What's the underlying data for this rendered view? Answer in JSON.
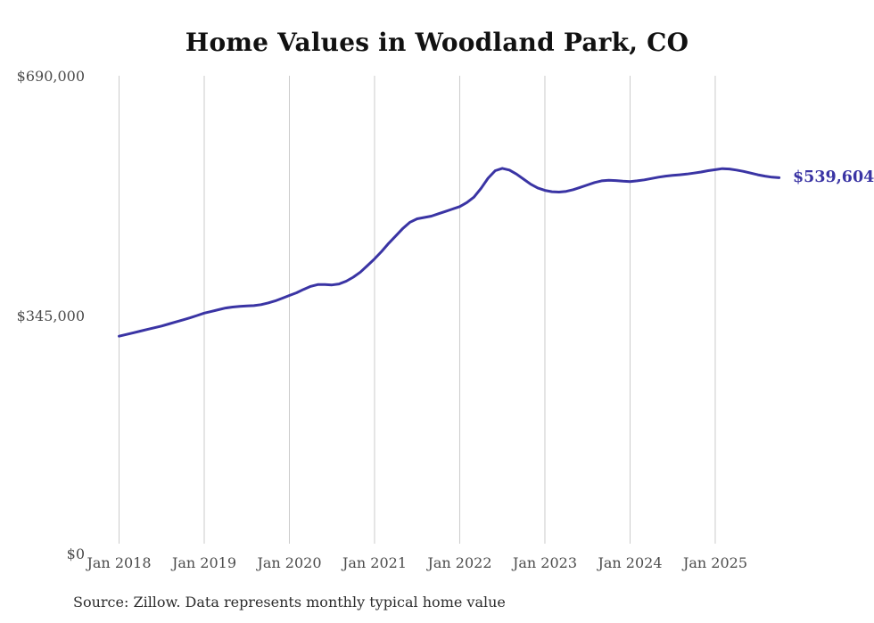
{
  "chart": {
    "title": "Home Values in Woodland Park, CO",
    "source": "Source: Zillow. Data represents monthly typical home value",
    "line_color": "#3A34A4",
    "gridline_color": "#cbcbcb",
    "axis_label_color": "#4c4c4c"
  },
  "chart_data": {
    "type": "line",
    "title": "Home Values in Woodland Park, CO",
    "xlabel": "",
    "ylabel": "",
    "ylim": [
      0,
      690000
    ],
    "y_ticks": [
      "$0",
      "$345,000",
      "$690,000"
    ],
    "x_labels": [
      "Jan 2018",
      "Jan 2019",
      "Jan 2020",
      "Jan 2021",
      "Jan 2022",
      "Jan 2023",
      "Jan 2024",
      "Jan 2025"
    ],
    "x_start": "Jan 2018",
    "x_end": "Oct 2025",
    "points_per_year": 12,
    "grid": "vertical-only",
    "legend": "none",
    "latest_value": 539604,
    "latest_value_label": "$539,604",
    "series": [
      {
        "name": "Typical home value",
        "values": [
          306000,
          308500,
          311000,
          313500,
          316000,
          318500,
          321000,
          324000,
          327000,
          330000,
          333000,
          336500,
          340000,
          342500,
          345000,
          347500,
          349000,
          350000,
          350500,
          351000,
          352500,
          355000,
          358000,
          362000,
          366000,
          370000,
          375000,
          379500,
          382000,
          382000,
          381500,
          383000,
          387000,
          393000,
          400500,
          410000,
          420000,
          431000,
          443000,
          454000,
          465000,
          474000,
          479000,
          481000,
          483000,
          486500,
          490000,
          493500,
          497000,
          503000,
          511000,
          524000,
          539000,
          550000,
          553500,
          551000,
          545000,
          537500,
          530000,
          524500,
          521000,
          519000,
          518500,
          519500,
          522000,
          525500,
          529000,
          532500,
          535000,
          536000,
          535500,
          534500,
          534000,
          535000,
          536500,
          538500,
          540500,
          542000,
          543000,
          544000,
          545000,
          546500,
          548000,
          550000,
          551500,
          553000,
          552500,
          551000,
          549000,
          546500,
          544000,
          542000,
          540500,
          539604
        ]
      }
    ]
  }
}
